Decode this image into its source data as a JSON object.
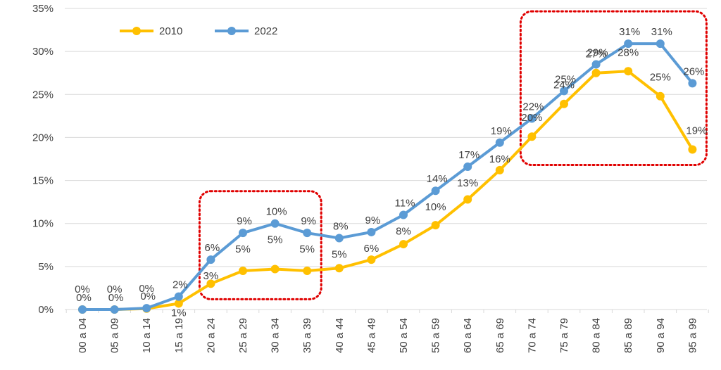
{
  "chart_data": {
    "type": "line",
    "title": "",
    "xlabel": "",
    "ylabel": "",
    "ylim": [
      0,
      35
    ],
    "y_ticks": [
      "0%",
      "5%",
      "10%",
      "15%",
      "20%",
      "25%",
      "30%",
      "35%"
    ],
    "grid": "horizontal",
    "legend_position": "top-left",
    "categories": [
      "00 a 04",
      "05 a 09",
      "10 a 14",
      "15 a 19",
      "20 a 24",
      "25 a 29",
      "30 a 34",
      "35 a 39",
      "40 a 44",
      "45 a 49",
      "50 a 54",
      "55 a 59",
      "60 a 64",
      "65 a 69",
      "70 a 74",
      "75 a 79",
      "80 a 84",
      "85 a 89",
      "90 a 94",
      "95 a 99"
    ],
    "series": [
      {
        "name": "2010",
        "color": "#FFC000",
        "values": [
          0,
          0,
          0.1,
          0.7,
          3.0,
          4.5,
          4.7,
          4.5,
          4.8,
          5.8,
          7.6,
          9.8,
          12.8,
          16.2,
          20.1,
          23.9,
          27.5,
          27.7,
          24.8,
          18.6
        ],
        "labels": [
          "0%",
          "0%",
          "0%",
          "1%",
          "3%",
          "5%",
          "5%",
          "5%",
          "5%",
          "6%",
          "8%",
          "10%",
          "13%",
          "16%",
          "20%",
          "24%",
          "27%",
          "28%",
          "25%",
          "19%"
        ]
      },
      {
        "name": "2022",
        "color": "#5B9BD5",
        "values": [
          0,
          0,
          0.15,
          1.5,
          5.8,
          8.9,
          10.0,
          8.9,
          8.3,
          9.0,
          11.0,
          13.8,
          16.6,
          19.4,
          22.2,
          25.4,
          28.5,
          30.9,
          30.9,
          26.3
        ],
        "labels": [
          "0%",
          "0%",
          "0%",
          "2%",
          "6%",
          "9%",
          "10%",
          "9%",
          "8%",
          "9%",
          "11%",
          "14%",
          "17%",
          "19%",
          "22%",
          "25%",
          "29%",
          "31%",
          "31%",
          "26%"
        ]
      }
    ],
    "highlight_boxes": [
      {
        "from": "20 a 24",
        "to": "35 a 39",
        "style": "dotted",
        "color": "#E00000"
      },
      {
        "from": "70 a 74",
        "to": "95 a 99",
        "style": "dotted",
        "color": "#E00000"
      }
    ]
  }
}
